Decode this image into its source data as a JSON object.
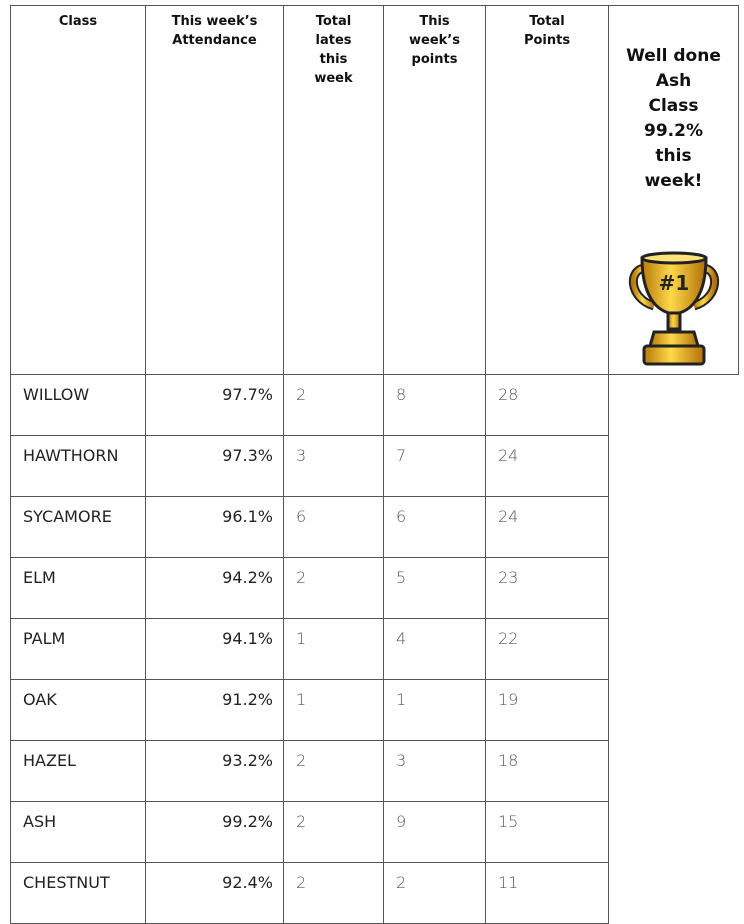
{
  "table": {
    "headers": [
      [
        "Class"
      ],
      [
        "This week’s",
        "Attendance"
      ],
      [
        "Total",
        "lates",
        "this",
        "week"
      ],
      [
        "This",
        "week’s",
        "points"
      ],
      [
        "Total",
        "Points"
      ]
    ],
    "rows": [
      [
        "WILLOW",
        "97.7%",
        2,
        8,
        28
      ],
      [
        "HAWTHORN",
        "97.3%",
        3,
        7,
        24
      ],
      [
        "SYCAMORE",
        "96.1%",
        6,
        6,
        24
      ],
      [
        "ELM",
        "94.2%",
        2,
        5,
        23
      ],
      [
        "PALM",
        "94.1%",
        1,
        4,
        22
      ],
      [
        "OAK",
        "91.2%",
        1,
        1,
        19
      ],
      [
        "HAZEL",
        "93.2%",
        2,
        3,
        18
      ],
      [
        "ASH",
        "99.2%",
        2,
        9,
        15
      ],
      [
        "CHESTNUT",
        "92.4%",
        2,
        2,
        11
      ]
    ]
  },
  "side_note": {
    "lines": [
      "Well done",
      "Ash",
      "Class",
      "99.2%",
      "this",
      "week!"
    ],
    "trophy_label": "#1"
  }
}
